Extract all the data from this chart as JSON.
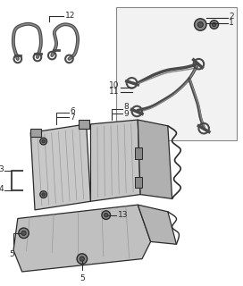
{
  "bg_color": "#ffffff",
  "line_color": "#2a2a2a",
  "part_color": "#4a4a4a",
  "shade_color": "#b8b8b8",
  "shade_dark": "#909090",
  "box_bg": "#f0f0f0",
  "figsize": [
    2.72,
    3.2
  ],
  "dpi": 100
}
